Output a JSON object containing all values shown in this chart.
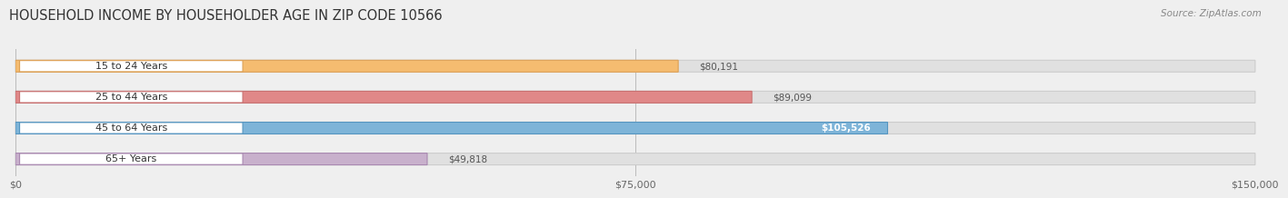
{
  "title": "HOUSEHOLD INCOME BY HOUSEHOLDER AGE IN ZIP CODE 10566",
  "source": "Source: ZipAtlas.com",
  "categories": [
    "15 to 24 Years",
    "25 to 44 Years",
    "45 to 64 Years",
    "65+ Years"
  ],
  "values": [
    80191,
    89099,
    105526,
    49818
  ],
  "bar_colors": [
    "#F5BC70",
    "#E08888",
    "#7EB4D8",
    "#C8B0CC"
  ],
  "bar_border_colors": [
    "#DDA055",
    "#C87070",
    "#5595C0",
    "#A888B0"
  ],
  "value_inside": [
    false,
    false,
    true,
    false
  ],
  "xlim": [
    0,
    150000
  ],
  "xticks": [
    0,
    75000,
    150000
  ],
  "xtick_labels": [
    "$0",
    "$75,000",
    "$150,000"
  ],
  "title_fontsize": 10.5,
  "source_fontsize": 7.5,
  "bar_height": 0.38,
  "bg_color": "#efefef",
  "bar_bg_color": "#e0e0e0",
  "bar_bg_border": "#cccccc",
  "label_bubble_color": "#ffffff",
  "label_bubble_border": [
    "#E8A050",
    "#C87070",
    "#5595C0",
    "#A888B0"
  ],
  "value_text_color_outside": "#555555",
  "value_text_color_inside": "#ffffff",
  "cat_text_color": "#333333"
}
